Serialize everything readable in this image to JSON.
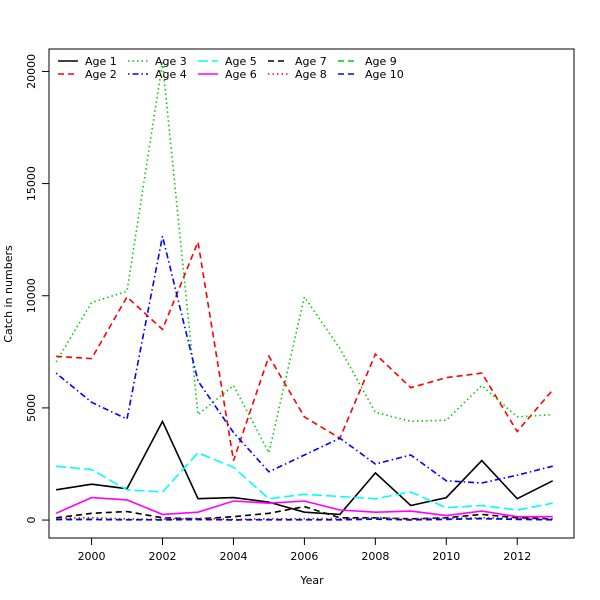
{
  "chart_data": {
    "type": "line",
    "xlabel": "Year",
    "ylabel": "Catch in numbers",
    "xlim": [
      1998.8,
      2013.6
    ],
    "ylim": [
      -800,
      21000
    ],
    "x_ticks": [
      2000,
      2002,
      2004,
      2006,
      2008,
      2010,
      2012
    ],
    "y_ticks": [
      0,
      5000,
      10000,
      15000,
      20000
    ],
    "grid": false,
    "legend_position": "top-left",
    "x": [
      1999,
      2000,
      2001,
      2002,
      2003,
      2004,
      2005,
      2006,
      2007,
      2008,
      2009,
      2010,
      2011,
      2012,
      2013
    ],
    "series": [
      {
        "name": "Age 1",
        "color": "#000000",
        "dash": "solid",
        "values": [
          1350,
          1600,
          1400,
          4400,
          950,
          1000,
          800,
          350,
          250,
          2100,
          650,
          1000,
          2650,
          950,
          1750
        ]
      },
      {
        "name": "Age 2",
        "color": "#ff0000",
        "dash": "dashed",
        "values": [
          7300,
          7200,
          9950,
          8500,
          12400,
          2650,
          7300,
          4600,
          3650,
          7400,
          5900,
          6350,
          6550,
          3950,
          5800
        ]
      },
      {
        "name": "Age 3",
        "color": "#00cd00",
        "dash": "dotted",
        "values": [
          7050,
          9700,
          10200,
          20400,
          4700,
          6000,
          3000,
          9950,
          7650,
          4800,
          4400,
          4450,
          6000,
          4600,
          4700
        ]
      },
      {
        "name": "Age 4",
        "color": "#0000ff",
        "dash": "dotdash",
        "values": [
          6550,
          5250,
          4500,
          12650,
          6200,
          3900,
          2150,
          2900,
          3650,
          2500,
          2900,
          1750,
          1650,
          2000,
          2400
        ]
      },
      {
        "name": "Age 5",
        "color": "#00ffff",
        "dash": "longdash",
        "values": [
          2400,
          2250,
          1350,
          1250,
          3000,
          2350,
          950,
          1150,
          1050,
          950,
          1250,
          550,
          650,
          450,
          750
        ]
      },
      {
        "name": "Age 6",
        "color": "#ff00ff",
        "dash": "solid",
        "values": [
          300,
          1000,
          900,
          250,
          350,
          850,
          750,
          850,
          450,
          350,
          400,
          200,
          400,
          150,
          150
        ]
      },
      {
        "name": "Age 7",
        "color": "#000000",
        "dash": "dashed",
        "values": [
          100,
          300,
          380,
          100,
          50,
          150,
          300,
          600,
          100,
          100,
          50,
          100,
          250,
          100,
          50
        ]
      },
      {
        "name": "Age 8",
        "color": "#ff0000",
        "dash": "dotted",
        "values": [
          80,
          100,
          50,
          30,
          80,
          30,
          50,
          60,
          60,
          100,
          60,
          80,
          100,
          80,
          50
        ]
      },
      {
        "name": "Age 9",
        "color": "#00cd00",
        "dash": "dashed",
        "values": [
          30,
          40,
          20,
          10,
          30,
          10,
          20,
          20,
          20,
          60,
          10,
          40,
          80,
          40,
          20
        ]
      },
      {
        "name": "Age 10",
        "color": "#0000ff",
        "dash": "dashed",
        "values": [
          20,
          20,
          10,
          5,
          20,
          5,
          10,
          10,
          10,
          40,
          5,
          30,
          60,
          30,
          10
        ]
      }
    ]
  }
}
